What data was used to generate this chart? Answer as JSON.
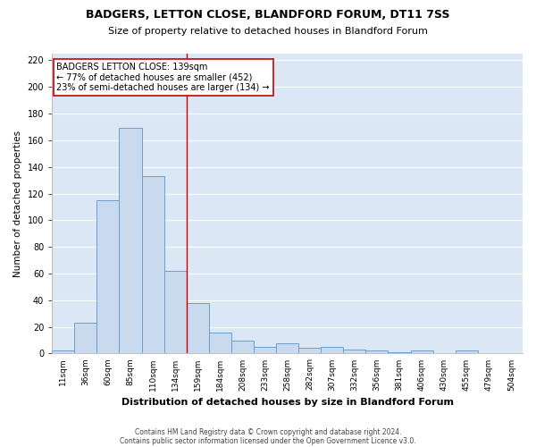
{
  "title1": "BADGERS, LETTON CLOSE, BLANDFORD FORUM, DT11 7SS",
  "title2": "Size of property relative to detached houses in Blandford Forum",
  "xlabel": "Distribution of detached houses by size in Blandford Forum",
  "ylabel": "Number of detached properties",
  "footnote1": "Contains HM Land Registry data © Crown copyright and database right 2024.",
  "footnote2": "Contains public sector information licensed under the Open Government Licence v3.0.",
  "bar_color": "#c9d9ee",
  "bar_edge_color": "#6a9fd0",
  "plot_bg_color": "#dce7f5",
  "fig_bg_color": "#ffffff",
  "grid_color": "#ffffff",
  "vline_color": "#cc0000",
  "ann_box_color": "#ffffff",
  "ann_border_color": "#cc0000",
  "categories": [
    "11sqm",
    "36sqm",
    "60sqm",
    "85sqm",
    "110sqm",
    "134sqm",
    "159sqm",
    "184sqm",
    "208sqm",
    "233sqm",
    "258sqm",
    "282sqm",
    "307sqm",
    "332sqm",
    "356sqm",
    "381sqm",
    "406sqm",
    "430sqm",
    "455sqm",
    "479sqm",
    "504sqm"
  ],
  "values": [
    2,
    23,
    115,
    169,
    133,
    62,
    38,
    16,
    10,
    5,
    8,
    4,
    5,
    3,
    2,
    1,
    2,
    0,
    2,
    0,
    0
  ],
  "vline_position": 5.5,
  "annotation_line1": "BADGERS LETTON CLOSE: 139sqm",
  "annotation_line2": "← 77% of detached houses are smaller (452)",
  "annotation_line3": "23% of semi-detached houses are larger (134) →",
  "ylim": [
    0,
    225
  ],
  "yticks": [
    0,
    20,
    40,
    60,
    80,
    100,
    120,
    140,
    160,
    180,
    200,
    220
  ]
}
